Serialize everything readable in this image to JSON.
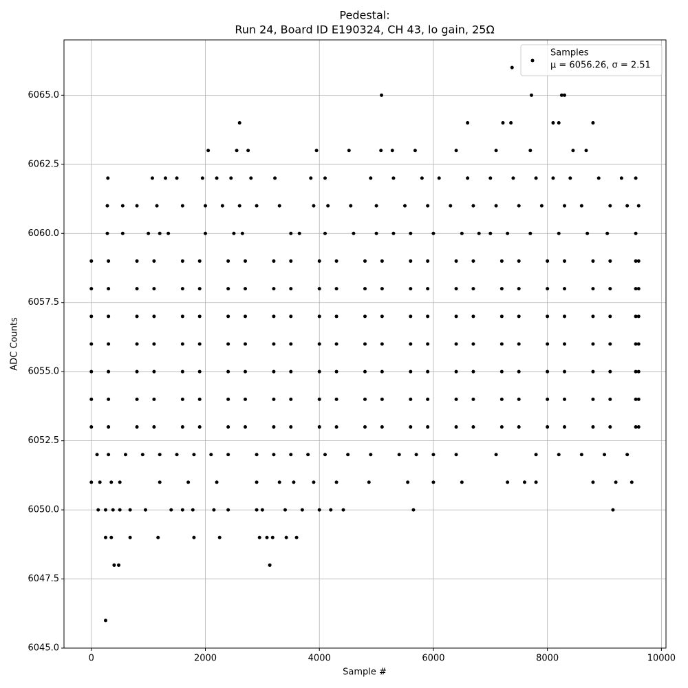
{
  "chart_data": {
    "type": "scatter",
    "title": "Pedestal:",
    "subtitle": "Run 24, Board ID E190324, CH 43, lo gain, 25Ω",
    "x_label": "Sample #",
    "y_label": "ADC Counts",
    "legend_note": "μ = 6056.26, σ = 2.51",
    "legend": "upper right",
    "grid": true,
    "xlim": [
      -480,
      10080
    ],
    "ylim": [
      6045,
      6067
    ],
    "xticks": [
      0,
      2000,
      4000,
      6000,
      8000,
      10000
    ],
    "yticks": [
      {
        "value": 6045,
        "label": "6045.0"
      },
      {
        "value": 6047.5,
        "label": "6047.5"
      },
      {
        "value": 6050,
        "label": "6050.0"
      },
      {
        "value": 6052.5,
        "label": "6052.5"
      },
      {
        "value": 6055,
        "label": "6055.0"
      },
      {
        "value": 6057.5,
        "label": "6057.5"
      },
      {
        "value": 6060,
        "label": "6060.0"
      },
      {
        "value": 6062.5,
        "label": "6062.5"
      },
      {
        "value": 6065,
        "label": "6065.0"
      }
    ],
    "series": [
      {
        "name": "Samples",
        "color": "#000000",
        "x": [
          250,
          400,
          480,
          3130,
          250,
          350,
          680,
          1170,
          1800,
          2250,
          2950,
          3080,
          3180,
          3420,
          3600,
          120,
          250,
          380,
          500,
          680,
          950,
          1400,
          1600,
          1780,
          2150,
          2400,
          2900,
          3000,
          3400,
          3700,
          4000,
          4200,
          4420,
          5650,
          9150,
          0,
          150,
          350,
          500,
          1200,
          1700,
          2200,
          2900,
          3300,
          3550,
          3900,
          4300,
          4870,
          5550,
          6000,
          6500,
          7300,
          7600,
          7800,
          8800,
          9200,
          9480,
          100,
          300,
          600,
          900,
          1200,
          1500,
          1800,
          2100,
          2400,
          2900,
          3200,
          3500,
          3800,
          4100,
          4500,
          4900,
          5400,
          5700,
          6000,
          6400,
          7100,
          7800,
          8200,
          8600,
          9000,
          9400,
          0,
          800,
          1600,
          2400,
          3200,
          4000,
          4800,
          5600,
          6400,
          7200,
          8000,
          8800,
          9600,
          300,
          1100,
          1900,
          2700,
          3500,
          4300,
          5100,
          5900,
          6700,
          7500,
          8300,
          9100,
          9550,
          0,
          800,
          1600,
          2400,
          3200,
          4000,
          4800,
          5600,
          6400,
          7200,
          8000,
          8800,
          9600,
          300,
          1100,
          1900,
          2700,
          3500,
          4300,
          5100,
          5900,
          6700,
          7500,
          8300,
          9100,
          9550,
          0,
          800,
          1600,
          2400,
          3200,
          4000,
          4800,
          5600,
          6400,
          7200,
          8000,
          8800,
          9600,
          300,
          1100,
          1900,
          2700,
          3500,
          4300,
          5100,
          5900,
          6700,
          7500,
          8300,
          9100,
          9550,
          0,
          800,
          1600,
          2400,
          3200,
          4000,
          4800,
          5600,
          6400,
          7200,
          8000,
          8800,
          9600,
          300,
          1100,
          1900,
          2700,
          3500,
          4300,
          5100,
          5900,
          6700,
          7500,
          8300,
          9100,
          9550,
          0,
          800,
          1600,
          2400,
          3200,
          4000,
          4800,
          5600,
          6400,
          7200,
          8000,
          8800,
          9600,
          300,
          1100,
          1900,
          2700,
          3500,
          4300,
          5100,
          5900,
          6700,
          7500,
          8300,
          9100,
          9550,
          0,
          800,
          1600,
          2400,
          3200,
          4000,
          4800,
          5600,
          6400,
          7200,
          8000,
          8800,
          9600,
          300,
          1100,
          1900,
          2700,
          3500,
          4300,
          5100,
          5900,
          6700,
          7500,
          8300,
          9100,
          9550,
          0,
          800,
          1600,
          2400,
          3200,
          4000,
          4800,
          5600,
          6400,
          7200,
          8000,
          8800,
          9600,
          300,
          1100,
          1900,
          2700,
          3500,
          4300,
          5100,
          5900,
          6700,
          7500,
          8300,
          9100,
          9550,
          280,
          550,
          1000,
          1200,
          1350,
          2000,
          2500,
          2650,
          3500,
          3650,
          4100,
          4600,
          5000,
          5300,
          5600,
          6000,
          6500,
          6800,
          7000,
          7300,
          7700,
          8200,
          8700,
          9050,
          9550,
          280,
          550,
          800,
          1150,
          1600,
          2000,
          2300,
          2600,
          2900,
          3300,
          3900,
          4150,
          4550,
          5000,
          5500,
          5900,
          6300,
          6700,
          7100,
          7500,
          7900,
          8300,
          8600,
          9100,
          9400,
          9600,
          290,
          1070,
          1300,
          1500,
          1950,
          2200,
          2450,
          2800,
          3220,
          3850,
          4100,
          4900,
          5300,
          5800,
          6100,
          6600,
          7000,
          7400,
          7800,
          8100,
          8400,
          8900,
          9300,
          9550,
          2050,
          2550,
          2750,
          3950,
          4520,
          5080,
          5280,
          5680,
          6400,
          7100,
          7700,
          8450,
          8680,
          2600,
          6600,
          7220,
          7360,
          8100,
          8200,
          8800,
          5090,
          7720,
          8250,
          8300,
          7380
        ],
        "values": [
          6046,
          6048,
          6048,
          6048,
          6049,
          6049,
          6049,
          6049,
          6049,
          6049,
          6049,
          6049,
          6049,
          6049,
          6049,
          6050,
          6050,
          6050,
          6050,
          6050,
          6050,
          6050,
          6050,
          6050,
          6050,
          6050,
          6050,
          6050,
          6050,
          6050,
          6050,
          6050,
          6050,
          6050,
          6050,
          6051,
          6051,
          6051,
          6051,
          6051,
          6051,
          6051,
          6051,
          6051,
          6051,
          6051,
          6051,
          6051,
          6051,
          6051,
          6051,
          6051,
          6051,
          6051,
          6051,
          6051,
          6051,
          6052,
          6052,
          6052,
          6052,
          6052,
          6052,
          6052,
          6052,
          6052,
          6052,
          6052,
          6052,
          6052,
          6052,
          6052,
          6052,
          6052,
          6052,
          6052,
          6052,
          6052,
          6052,
          6052,
          6052,
          6052,
          6052,
          6053,
          6053,
          6053,
          6053,
          6053,
          6053,
          6053,
          6053,
          6053,
          6053,
          6053,
          6053,
          6053,
          6053,
          6053,
          6053,
          6053,
          6053,
          6053,
          6053,
          6053,
          6053,
          6053,
          6053,
          6053,
          6053,
          6054,
          6054,
          6054,
          6054,
          6054,
          6054,
          6054,
          6054,
          6054,
          6054,
          6054,
          6054,
          6054,
          6054,
          6054,
          6054,
          6054,
          6054,
          6054,
          6054,
          6054,
          6054,
          6054,
          6054,
          6054,
          6054,
          6055,
          6055,
          6055,
          6055,
          6055,
          6055,
          6055,
          6055,
          6055,
          6055,
          6055,
          6055,
          6055,
          6055,
          6055,
          6055,
          6055,
          6055,
          6055,
          6055,
          6055,
          6055,
          6055,
          6055,
          6055,
          6055,
          6056,
          6056,
          6056,
          6056,
          6056,
          6056,
          6056,
          6056,
          6056,
          6056,
          6056,
          6056,
          6056,
          6056,
          6056,
          6056,
          6056,
          6056,
          6056,
          6056,
          6056,
          6056,
          6056,
          6056,
          6056,
          6056,
          6057,
          6057,
          6057,
          6057,
          6057,
          6057,
          6057,
          6057,
          6057,
          6057,
          6057,
          6057,
          6057,
          6057,
          6057,
          6057,
          6057,
          6057,
          6057,
          6057,
          6057,
          6057,
          6057,
          6057,
          6057,
          6057,
          6058,
          6058,
          6058,
          6058,
          6058,
          6058,
          6058,
          6058,
          6058,
          6058,
          6058,
          6058,
          6058,
          6058,
          6058,
          6058,
          6058,
          6058,
          6058,
          6058,
          6058,
          6058,
          6058,
          6058,
          6058,
          6058,
          6059,
          6059,
          6059,
          6059,
          6059,
          6059,
          6059,
          6059,
          6059,
          6059,
          6059,
          6059,
          6059,
          6059,
          6059,
          6059,
          6059,
          6059,
          6059,
          6059,
          6059,
          6059,
          6059,
          6059,
          6059,
          6059,
          6060,
          6060,
          6060,
          6060,
          6060,
          6060,
          6060,
          6060,
          6060,
          6060,
          6060,
          6060,
          6060,
          6060,
          6060,
          6060,
          6060,
          6060,
          6060,
          6060,
          6060,
          6060,
          6060,
          6060,
          6060,
          6061,
          6061,
          6061,
          6061,
          6061,
          6061,
          6061,
          6061,
          6061,
          6061,
          6061,
          6061,
          6061,
          6061,
          6061,
          6061,
          6061,
          6061,
          6061,
          6061,
          6061,
          6061,
          6061,
          6061,
          6061,
          6061,
          6062,
          6062,
          6062,
          6062,
          6062,
          6062,
          6062,
          6062,
          6062,
          6062,
          6062,
          6062,
          6062,
          6062,
          6062,
          6062,
          6062,
          6062,
          6062,
          6062,
          6062,
          6062,
          6062,
          6062,
          6063,
          6063,
          6063,
          6063,
          6063,
          6063,
          6063,
          6063,
          6063,
          6063,
          6063,
          6063,
          6063,
          6064,
          6064,
          6064,
          6064,
          6064,
          6064,
          6064,
          6065,
          6065,
          6065,
          6065,
          6066
        ]
      }
    ]
  }
}
